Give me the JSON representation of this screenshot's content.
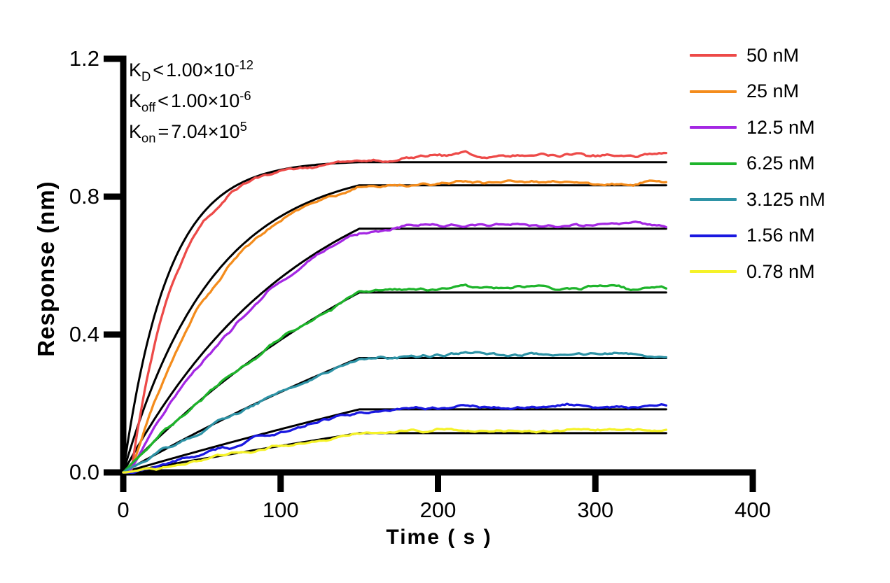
{
  "figure": {
    "background": "#FFFFFF",
    "text_color": "#000000"
  },
  "annotations": {
    "kd": {
      "name": "K",
      "sub": "D",
      "op": "<",
      "mantissa": "1.00×10",
      "exponent": "-12"
    },
    "koff": {
      "name": "K",
      "sub": "off",
      "op": "<",
      "mantissa": "1.00×10",
      "exponent": "-6"
    },
    "kon": {
      "name": "K",
      "sub": "on",
      "op": "=",
      "mantissa": "7.04×10",
      "exponent": "5"
    }
  },
  "chart_data": {
    "type": "line",
    "title": "",
    "xlabel": "Time ( s )",
    "ylabel": "Response (nm)",
    "xlim": [
      0,
      400
    ],
    "ylim": [
      0.0,
      1.2
    ],
    "x_ticks": [
      0,
      100,
      200,
      300,
      400
    ],
    "y_ticks": [
      "0.0",
      "0.4",
      "0.8",
      "1.2"
    ],
    "grid": false,
    "legend_position": "top-right",
    "axis_color": "#000000",
    "fit_color": "#000000",
    "kinetics": {
      "kon_per_M_per_s": 704000,
      "association_phase_s": [
        0,
        150
      ],
      "dissociation_phase_s": [
        150,
        345
      ],
      "dissociation_shape": "flat (koff below detection limit)"
    },
    "series": [
      {
        "label": "50 nM",
        "conc_nM": 50,
        "color": "#ED4A48",
        "response_at_150s_nm": 0.9,
        "end_drift_nm": 0.022,
        "noise_nm": 0.0075,
        "lag_s": 5
      },
      {
        "label": "25 nM",
        "conc_nM": 25,
        "color": "#F48C1C",
        "response_at_150s_nm": 0.833,
        "end_drift_nm": 0.008,
        "noise_nm": 0.0075,
        "lag_s": 5
      },
      {
        "label": "12.5 nM",
        "conc_nM": 12.5,
        "color": "#A427E3",
        "response_at_150s_nm": 0.707,
        "end_drift_nm": 0.012,
        "noise_nm": 0.007,
        "lag_s": 4
      },
      {
        "label": "6.25 nM",
        "conc_nM": 6.25,
        "color": "#1EB42B",
        "response_at_150s_nm": 0.522,
        "end_drift_nm": 0.015,
        "noise_nm": 0.007,
        "lag_s": 0
      },
      {
        "label": "3.125 nM",
        "conc_nM": 3.125,
        "color": "#2E93A6",
        "response_at_150s_nm": 0.332,
        "end_drift_nm": 0.008,
        "noise_nm": 0.0065,
        "lag_s": 0
      },
      {
        "label": "1.56 nM",
        "conc_nM": 1.56,
        "color": "#1A18E0",
        "response_at_150s_nm": 0.183,
        "end_drift_nm": 0.008,
        "noise_nm": 0.0068,
        "lag_s": 8
      },
      {
        "label": "0.78 nM",
        "conc_nM": 0.78,
        "color": "#F5F228",
        "response_at_150s_nm": 0.114,
        "end_drift_nm": 0.007,
        "noise_nm": 0.0052,
        "lag_s": 2
      }
    ]
  }
}
